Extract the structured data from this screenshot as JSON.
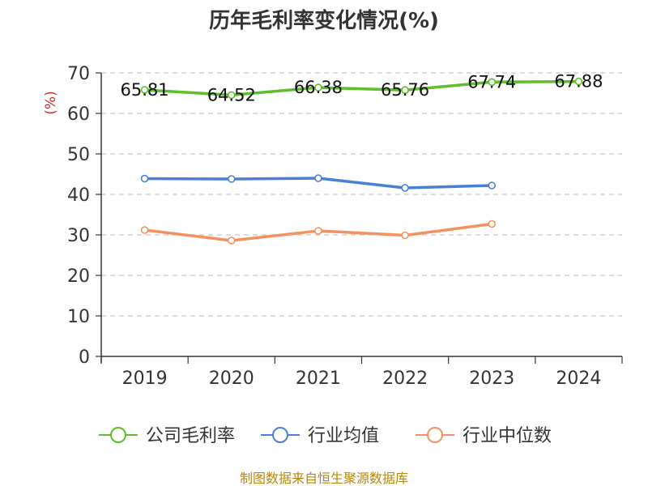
{
  "chart_data": {
    "type": "line",
    "title": "历年毛利率变化情况(%)",
    "ylabel": "(%)",
    "xlabel": "",
    "categories": [
      "2019",
      "2020",
      "2021",
      "2022",
      "2023",
      "2024"
    ],
    "ylim": [
      0,
      70
    ],
    "yticks": [
      0,
      10,
      20,
      30,
      40,
      50,
      60,
      70
    ],
    "grid": true,
    "legend_position": "bottom",
    "series": [
      {
        "name": "公司毛利率",
        "color": "#5cbf2a",
        "values": [
          65.81,
          64.52,
          66.38,
          65.76,
          67.74,
          67.88
        ],
        "labels": [
          "65.81",
          "64.52",
          "66.38",
          "65.76",
          "67.74",
          "67.88"
        ]
      },
      {
        "name": "行业均值",
        "color": "#4a7fd8",
        "values": [
          43.9,
          43.8,
          44.0,
          41.6,
          42.2,
          null
        ]
      },
      {
        "name": "行业中位数",
        "color": "#f39260",
        "values": [
          31.2,
          28.6,
          31.0,
          29.9,
          32.7,
          null
        ]
      }
    ]
  },
  "source": "制图数据来自恒生聚源数据库"
}
